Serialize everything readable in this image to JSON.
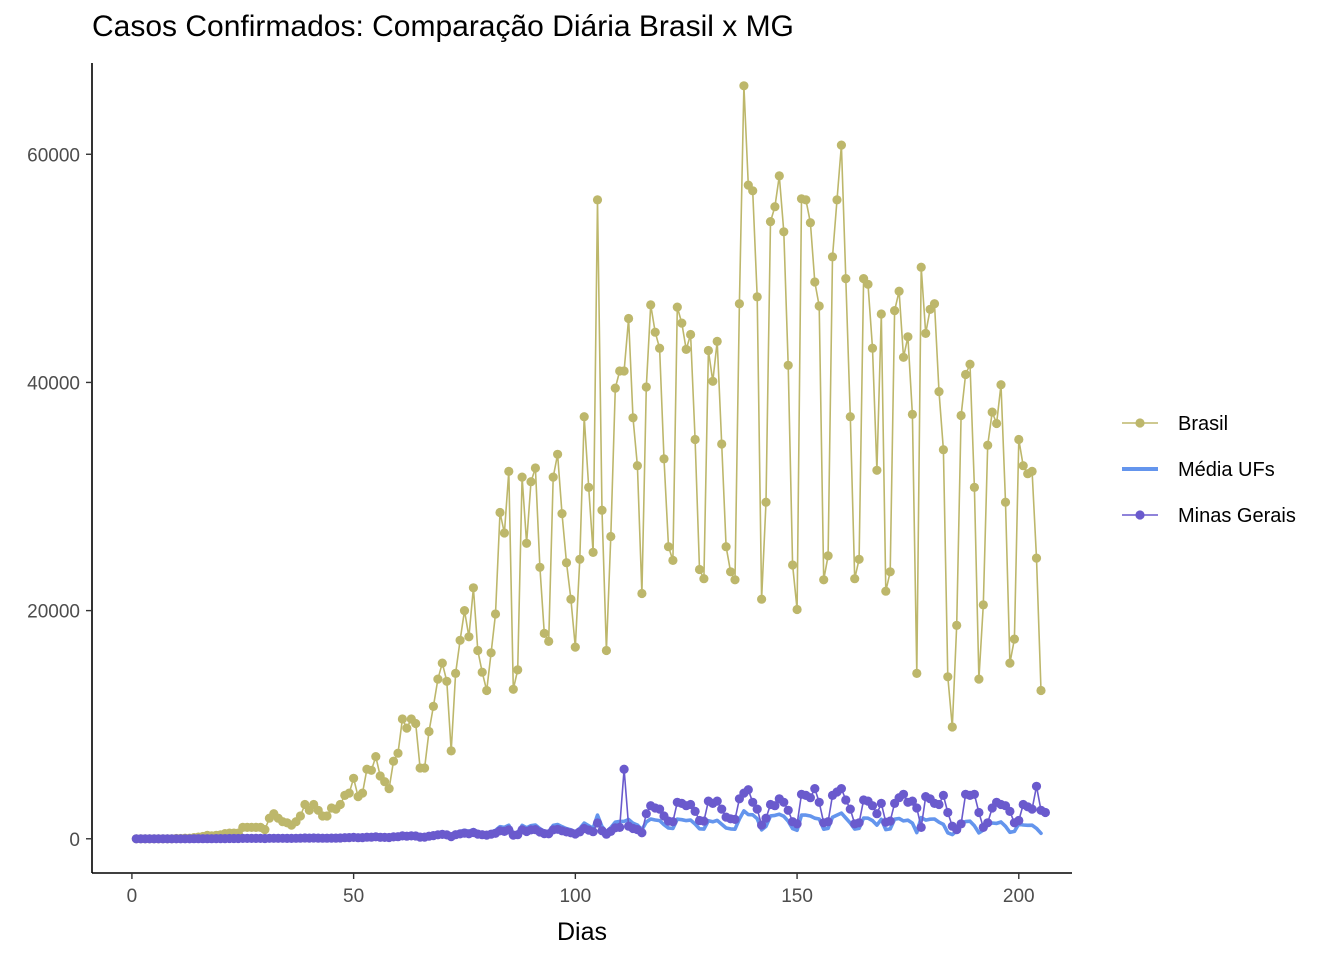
{
  "chart_data": {
    "type": "line",
    "title": "Casos Confirmados: Comparação Diária Brasil x MG",
    "xlabel": "Dias",
    "ylabel": "",
    "xlim": [
      -9,
      212
    ],
    "ylim": [
      -3000,
      68000
    ],
    "xticks": [
      0,
      50,
      100,
      150,
      200
    ],
    "yticks": [
      0,
      20000,
      40000,
      60000
    ],
    "grid": false,
    "legend_position": "right",
    "colors": {
      "brasil": "#BDB76B",
      "media": "#6495ED",
      "mg": "#6A5ACD"
    },
    "legend": [
      {
        "key": "brasil",
        "label": "Brasil",
        "style": "line-point"
      },
      {
        "key": "media",
        "label": "Média UFs",
        "style": "line"
      },
      {
        "key": "mg",
        "label": "Minas Gerais",
        "style": "line-point"
      }
    ],
    "series": [
      {
        "name": "Brasil",
        "key": "brasil",
        "x_start": 1,
        "values": [
          0,
          0,
          0,
          0,
          0,
          0,
          0,
          0,
          0,
          20,
          20,
          50,
          50,
          100,
          150,
          200,
          300,
          250,
          300,
          350,
          450,
          500,
          500,
          500,
          1000,
          1000,
          1000,
          1000,
          1000,
          800,
          1800,
          2200,
          1800,
          1500,
          1400,
          1200,
          1500,
          2000,
          3000,
          2500,
          3000,
          2500,
          2000,
          2000,
          2700,
          2600,
          3000,
          3800,
          4000,
          5300,
          3700,
          4000,
          6100,
          6000,
          7200,
          5500,
          5000,
          4400,
          6800,
          7500,
          10500,
          9700,
          10500,
          10100,
          6200,
          6200,
          9400,
          11600,
          14000,
          15400,
          13800,
          7700,
          14500,
          17400,
          20000,
          17700,
          22000,
          16500,
          14600,
          13000,
          16300,
          19700,
          28600,
          26800,
          32200,
          13100,
          14800,
          31700,
          25900,
          31300,
          32500,
          23800,
          18000,
          17300,
          31700,
          33700,
          28500,
          24200,
          21000,
          16800,
          24500,
          37000,
          30800,
          25100,
          56000,
          28800,
          16500,
          26500,
          39500,
          41000,
          41000,
          45600,
          36900,
          32700,
          21500,
          39600,
          46800,
          44400,
          43000,
          33300,
          25600,
          24400,
          46600,
          45200,
          42900,
          44200,
          35000,
          23600,
          22800,
          42800,
          40100,
          43600,
          34600,
          25600,
          23400,
          22700,
          46900,
          66000,
          57300,
          56800,
          47500,
          21000,
          29500,
          54100,
          55400,
          58100,
          53200,
          41500,
          24000,
          20100,
          56100,
          56000,
          54000,
          48800,
          46700,
          22700,
          24800,
          51000,
          56000,
          60800,
          49100,
          37000,
          22800,
          24500,
          49100,
          48600,
          43000,
          32300,
          46000,
          21700,
          23400,
          46300,
          48000,
          42200,
          44000,
          37200,
          14500,
          50100,
          44300,
          46400,
          46900,
          39200,
          34100,
          14200,
          9800,
          18700,
          37100,
          40700,
          41600,
          30800,
          14000,
          20500,
          34500,
          37400,
          36400,
          39800,
          29500,
          15400,
          17500,
          35000,
          32700,
          32000,
          32200,
          24600,
          13000
        ]
      },
      {
        "name": "Média UFs",
        "key": "media",
        "x_start": 1,
        "values": [
          0,
          0,
          0,
          0,
          0,
          0,
          0,
          0,
          0,
          1,
          1,
          2,
          2,
          4,
          6,
          7,
          11,
          9,
          11,
          13,
          17,
          19,
          19,
          19,
          37,
          37,
          37,
          37,
          37,
          30,
          67,
          81,
          67,
          56,
          52,
          44,
          56,
          74,
          111,
          93,
          111,
          93,
          74,
          74,
          100,
          96,
          111,
          141,
          148,
          196,
          137,
          148,
          226,
          222,
          267,
          204,
          185,
          163,
          252,
          278,
          389,
          359,
          389,
          374,
          230,
          230,
          348,
          430,
          519,
          570,
          511,
          285,
          537,
          644,
          741,
          656,
          815,
          611,
          541,
          481,
          604,
          730,
          1059,
          993,
          1193,
          485,
          548,
          1174,
          959,
          1159,
          1204,
          881,
          667,
          641,
          1174,
          1248,
          1056,
          896,
          778,
          622,
          907,
          1370,
          1141,
          930,
          2074,
          1067,
          611,
          981,
          1463,
          1519,
          1519,
          1689,
          1367,
          1211,
          796,
          1467,
          1733,
          1644,
          1593,
          1233,
          948,
          904,
          1726,
          1674,
          1589,
          1637,
          1296,
          874,
          844,
          1585,
          1485,
          1615,
          1281,
          948,
          867,
          841,
          1737,
          2444,
          2122,
          2104,
          1759,
          778,
          1093,
          2004,
          2052,
          2152,
          1970,
          1537,
          889,
          744,
          2078,
          2074,
          2000,
          1807,
          1730,
          841,
          919,
          1889,
          2074,
          2252,
          1819,
          1370,
          844,
          907,
          1819,
          1800,
          1593,
          1196,
          1704,
          804,
          867,
          1715,
          1778,
          1563,
          1630,
          1378,
          537,
          1856,
          1641,
          1719,
          1737,
          1452,
          1263,
          526,
          363,
          693,
          1374,
          1507,
          1541,
          1141,
          519,
          759,
          1278,
          1385,
          1348,
          1474,
          1093,
          570,
          648,
          1296,
          1211,
          1185,
          1193,
          911,
          481
        ]
      },
      {
        "name": "Minas Gerais",
        "key": "mg",
        "x_start": 1,
        "values": [
          0,
          0,
          0,
          0,
          0,
          0,
          0,
          0,
          0,
          0,
          1,
          2,
          2,
          4,
          6,
          8,
          10,
          10,
          12,
          14,
          18,
          20,
          20,
          20,
          30,
          30,
          30,
          30,
          30,
          28,
          40,
          45,
          40,
          38,
          36,
          34,
          40,
          50,
          70,
          60,
          70,
          60,
          50,
          50,
          60,
          60,
          70,
          90,
          100,
          120,
          90,
          100,
          140,
          140,
          170,
          130,
          120,
          110,
          160,
          180,
          250,
          230,
          250,
          240,
          150,
          150,
          230,
          280,
          350,
          380,
          340,
          190,
          360,
          430,
          500,
          440,
          550,
          410,
          360,
          320,
          400,
          480,
          700,
          650,
          780,
          320,
          360,
          780,
          640,
          780,
          800,
          590,
          450,
          440,
          780,
          830,
          700,
          600,
          520,
          420,
          600,
          900,
          760,
          620,
          1380,
          700,
          400,
          650,
          960,
          1000,
          6100,
          1100,
          900,
          800,
          520,
          2200,
          2900,
          2700,
          2600,
          2000,
          1550,
          1500,
          3200,
          3100,
          2900,
          3000,
          2400,
          1600,
          1550,
          3300,
          3100,
          3300,
          2600,
          1900,
          1750,
          1700,
          3500,
          4000,
          4300,
          3200,
          2600,
          1200,
          1800,
          3000,
          2900,
          3500,
          3200,
          2500,
          1500,
          1300,
          3900,
          3800,
          3600,
          4400,
          3200,
          1400,
          1500,
          3800,
          4100,
          4400,
          3400,
          2600,
          1300,
          1400,
          3400,
          3300,
          2900,
          2200,
          3100,
          1450,
          1550,
          3100,
          3600,
          3900,
          3200,
          3300,
          2700,
          1000,
          3700,
          3500,
          3100,
          3000,
          3800,
          2300,
          1100,
          800,
          1300,
          3900,
          3800,
          3900,
          2300,
          1000,
          1400,
          2700,
          3200,
          3000,
          2900,
          2400,
          1400,
          1600,
          3000,
          2800,
          2600,
          4600,
          2500,
          2300
        ]
      }
    ]
  }
}
